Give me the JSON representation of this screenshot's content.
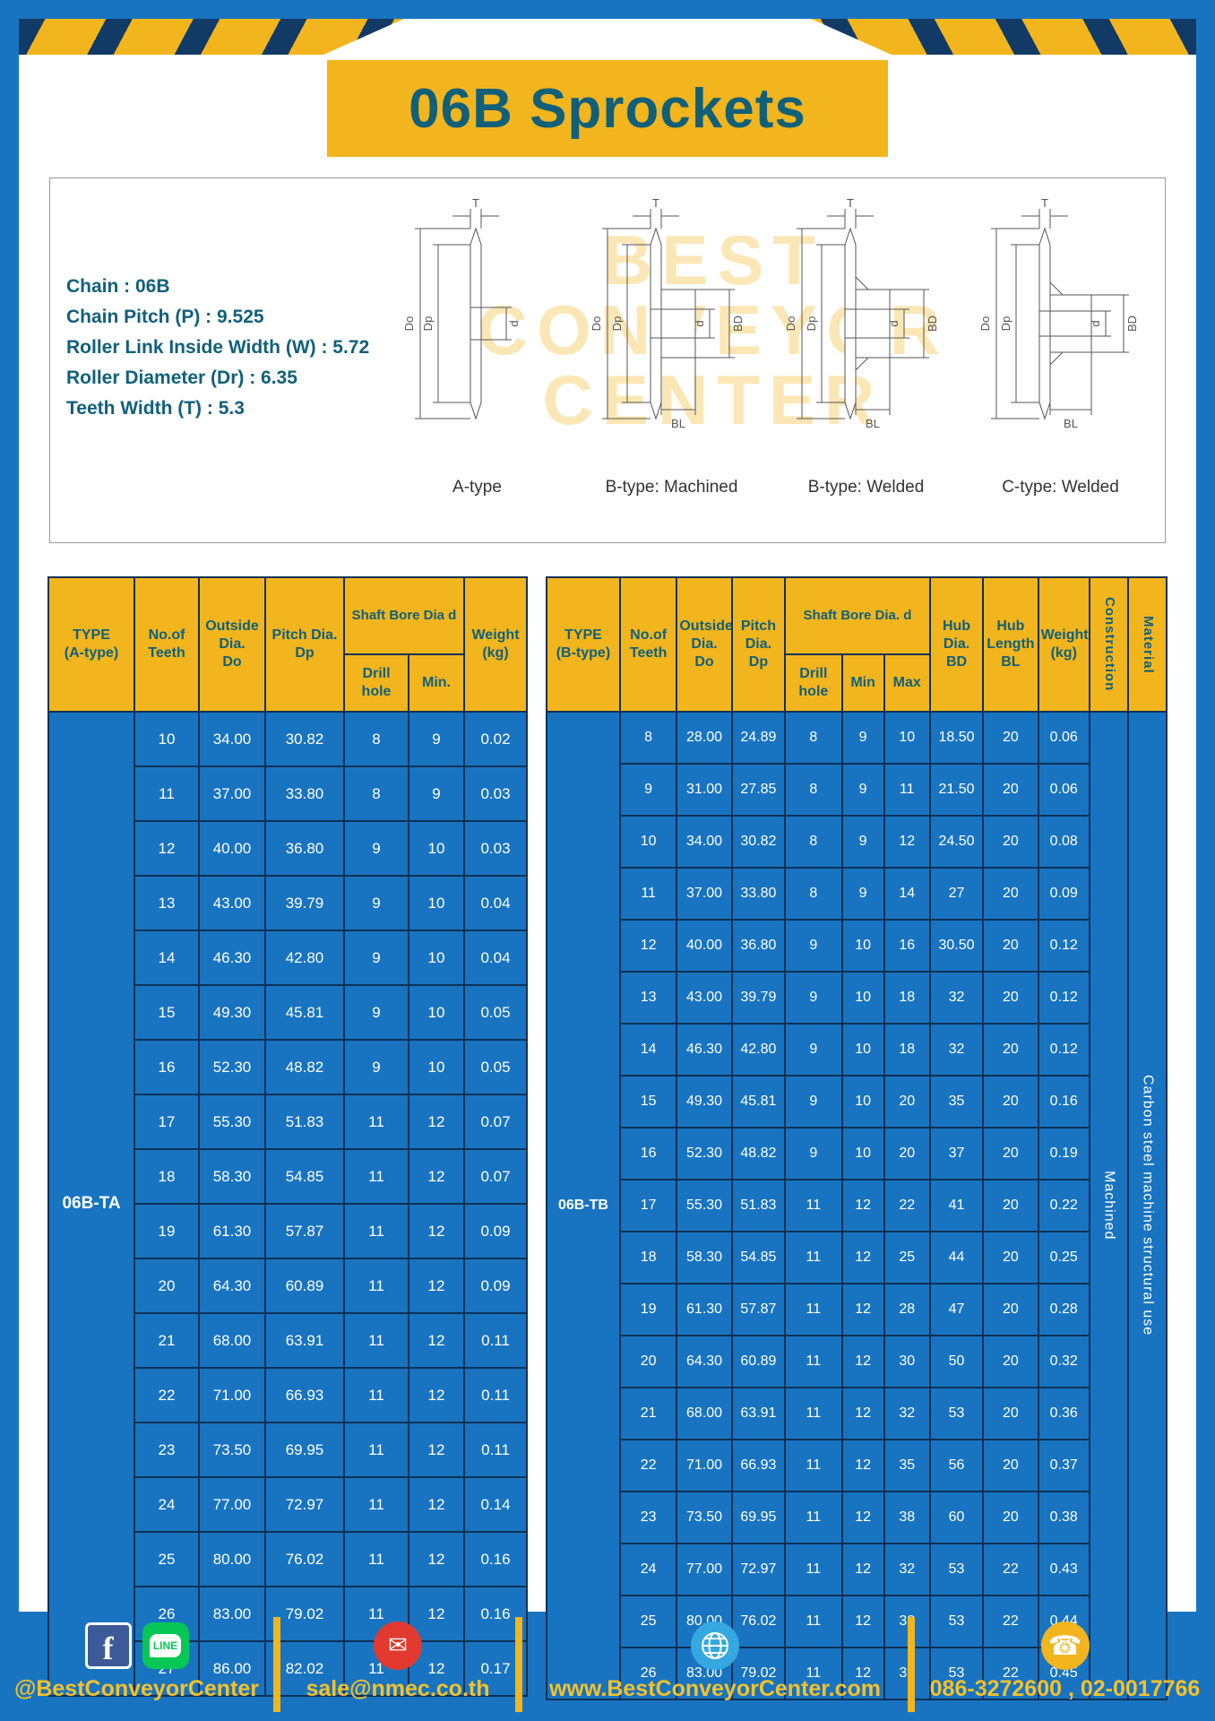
{
  "header": {
    "title": "06B Sprockets"
  },
  "colors": {
    "blue": "#1874c0",
    "yellow": "#f2b51d",
    "teal": "#11607a",
    "grid": "#0d3156"
  },
  "specs": {
    "lines": [
      "Chain  : 06B",
      "Chain Pitch (P)  :  9.525",
      "Roller Link Inside Width (W)  :  5.72",
      "Roller Diameter (Dr)  :  6.35",
      "Teeth Width (T)  :  5.3"
    ]
  },
  "dims": {
    "t": "T",
    "outer": "Do",
    "pitch": "Dp",
    "bore": "d",
    "hub": "BD",
    "hub_len": "BL"
  },
  "diagrams": {
    "watermark": [
      "BEST",
      "CONVEYOR",
      "CENTER"
    ],
    "captions": [
      "A-type",
      "B-type: Machined",
      "B-type: Welded",
      "C-type: Welded"
    ]
  },
  "table_a": {
    "type_label": "06B-TA",
    "header": {
      "type": "TYPE\n(A-type)",
      "teeth": "No.of\nTeeth",
      "outside": "Outside\nDia.\nDo",
      "pitch": "Pitch Dia.\nDp",
      "shaft_bore": "Shaft Bore Dia d",
      "drill": "Drill hole",
      "min": "Min.",
      "weight": "Weight\n(kg)"
    },
    "rows": [
      [
        "10",
        "34.00",
        "30.82",
        "8",
        "9",
        "0.02"
      ],
      [
        "11",
        "37.00",
        "33.80",
        "8",
        "9",
        "0.03"
      ],
      [
        "12",
        "40.00",
        "36.80",
        "9",
        "10",
        "0.03"
      ],
      [
        "13",
        "43.00",
        "39.79",
        "9",
        "10",
        "0.04"
      ],
      [
        "14",
        "46.30",
        "42.80",
        "9",
        "10",
        "0.04"
      ],
      [
        "15",
        "49.30",
        "45.81",
        "9",
        "10",
        "0.05"
      ],
      [
        "16",
        "52.30",
        "48.82",
        "9",
        "10",
        "0.05"
      ],
      [
        "17",
        "55.30",
        "51.83",
        "11",
        "12",
        "0.07"
      ],
      [
        "18",
        "58.30",
        "54.85",
        "11",
        "12",
        "0.07"
      ],
      [
        "19",
        "61.30",
        "57.87",
        "11",
        "12",
        "0.09"
      ],
      [
        "20",
        "64.30",
        "60.89",
        "11",
        "12",
        "0.09"
      ],
      [
        "21",
        "68.00",
        "63.91",
        "11",
        "12",
        "0.11"
      ],
      [
        "22",
        "71.00",
        "66.93",
        "11",
        "12",
        "0.11"
      ],
      [
        "23",
        "73.50",
        "69.95",
        "11",
        "12",
        "0.11"
      ],
      [
        "24",
        "77.00",
        "72.97",
        "11",
        "12",
        "0.14"
      ],
      [
        "25",
        "80.00",
        "76.02",
        "11",
        "12",
        "0.16"
      ],
      [
        "26",
        "83.00",
        "79.02",
        "11",
        "12",
        "0.16"
      ],
      [
        "27",
        "86.00",
        "82.02",
        "11",
        "12",
        "0.17"
      ]
    ]
  },
  "table_b": {
    "type_label": "06B-TB",
    "construction_value": "Machined",
    "material_value": "Carbon  steel  machine  structural  use",
    "header": {
      "type": "TYPE\n(B-type)",
      "teeth": "No.of\nTeeth",
      "outside": "Outside\nDia.\nDo",
      "pitch": "Pitch\nDia.\nDp",
      "shaft_bore": "Shaft Bore Dia.  d",
      "drill": "Drill hole",
      "min": "Min",
      "max": "Max",
      "hub_dia": "Hub\nDia.\nBD",
      "hub_len": "Hub\nLength\nBL",
      "weight": "Weight\n(kg)",
      "construction": "Construction",
      "material": "Material"
    },
    "rows": [
      [
        "8",
        "28.00",
        "24.89",
        "8",
        "9",
        "10",
        "18.50",
        "20",
        "0.06"
      ],
      [
        "9",
        "31.00",
        "27.85",
        "8",
        "9",
        "11",
        "21.50",
        "20",
        "0.06"
      ],
      [
        "10",
        "34.00",
        "30.82",
        "8",
        "9",
        "12",
        "24.50",
        "20",
        "0.08"
      ],
      [
        "11",
        "37.00",
        "33.80",
        "8",
        "9",
        "14",
        "27",
        "20",
        "0.09"
      ],
      [
        "12",
        "40.00",
        "36.80",
        "9",
        "10",
        "16",
        "30.50",
        "20",
        "0.12"
      ],
      [
        "13",
        "43.00",
        "39.79",
        "9",
        "10",
        "18",
        "32",
        "20",
        "0.12"
      ],
      [
        "14",
        "46.30",
        "42.80",
        "9",
        "10",
        "18",
        "32",
        "20",
        "0.12"
      ],
      [
        "15",
        "49.30",
        "45.81",
        "9",
        "10",
        "20",
        "35",
        "20",
        "0.16"
      ],
      [
        "16",
        "52.30",
        "48.82",
        "9",
        "10",
        "20",
        "37",
        "20",
        "0.19"
      ],
      [
        "17",
        "55.30",
        "51.83",
        "11",
        "12",
        "22",
        "41",
        "20",
        "0.22"
      ],
      [
        "18",
        "58.30",
        "54.85",
        "11",
        "12",
        "25",
        "44",
        "20",
        "0.25"
      ],
      [
        "19",
        "61.30",
        "57.87",
        "11",
        "12",
        "28",
        "47",
        "20",
        "0.28"
      ],
      [
        "20",
        "64.30",
        "60.89",
        "11",
        "12",
        "30",
        "50",
        "20",
        "0.32"
      ],
      [
        "21",
        "68.00",
        "63.91",
        "11",
        "12",
        "32",
        "53",
        "20",
        "0.36"
      ],
      [
        "22",
        "71.00",
        "66.93",
        "11",
        "12",
        "35",
        "56",
        "20",
        "0.37"
      ],
      [
        "23",
        "73.50",
        "69.95",
        "11",
        "12",
        "38",
        "60",
        "20",
        "0.38"
      ],
      [
        "24",
        "77.00",
        "72.97",
        "11",
        "12",
        "32",
        "53",
        "22",
        "0.43"
      ],
      [
        "25",
        "80.00",
        "76.02",
        "11",
        "12",
        "32",
        "53",
        "22",
        "0.44"
      ],
      [
        "26",
        "83.00",
        "79.02",
        "11",
        "12",
        "32",
        "53",
        "22",
        "0.45"
      ]
    ]
  },
  "footer": {
    "social_label": "@BestConveyorCenter",
    "email": "sale@nmec.co.th",
    "website": "www.BestConveyorCenter.com",
    "phone": "086-3272600 , 02-0017766",
    "icons": {
      "facebook_glyph": "f",
      "line_glyph": "LINE",
      "mail_glyph": "✉",
      "phone_glyph": "☎"
    }
  }
}
